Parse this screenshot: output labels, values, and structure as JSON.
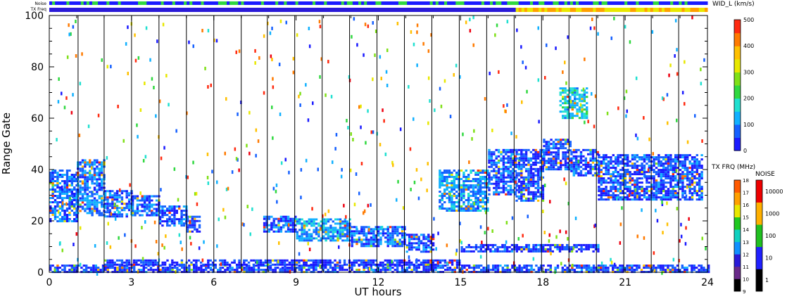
{
  "chart_data": {
    "type": "heatmap",
    "xlabel": "UT hours",
    "ylabel": "Range Gate",
    "xlim": [
      0,
      24
    ],
    "ylim": [
      0,
      100
    ],
    "x_ticks": [
      "0",
      "3",
      "6",
      "9",
      "12",
      "15",
      "18",
      "21",
      "24"
    ],
    "y_ticks": [
      "0",
      "20",
      "40",
      "60",
      "80",
      "100"
    ],
    "scan_boundaries_hours": [
      1.05,
      2.0,
      3.0,
      4.0,
      5.0,
      6.0,
      7.0,
      7.95,
      8.95,
      9.95,
      10.95,
      11.95,
      12.95,
      13.95,
      14.95,
      15.95,
      16.95,
      17.95,
      18.95,
      19.95,
      20.95,
      21.95,
      22.95
    ],
    "status_bars": {
      "noise_label": "Noise",
      "txfreq_label": "TX Freq",
      "txfreq_change_hour": 17.0
    },
    "width_scale": {
      "title": "WID_L (km/s)",
      "ticks": [
        "0",
        "100",
        "200",
        "300",
        "400",
        "500"
      ],
      "range": [
        0,
        500
      ]
    },
    "txfreq_scale": {
      "title": "TX FRQ (MHz)",
      "ticks": [
        "9",
        "10",
        "11",
        "12",
        "13",
        "14",
        "15",
        "16",
        "17",
        "18"
      ]
    },
    "noise_scale": {
      "title": "NOISE",
      "ticks": [
        "1",
        "10",
        "100",
        "1000",
        "10000"
      ]
    },
    "echo_regions": [
      {
        "t0": 0.0,
        "t1": 1.0,
        "g0": 20,
        "g1": 40,
        "width": 80
      },
      {
        "t0": 1.0,
        "t1": 2.0,
        "g0": 22,
        "g1": 44,
        "width": 90
      },
      {
        "t0": 2.0,
        "t1": 3.0,
        "g0": 22,
        "g1": 32,
        "width": 80
      },
      {
        "t0": 3.0,
        "t1": 4.0,
        "g0": 22,
        "g1": 30,
        "width": 60
      },
      {
        "t0": 4.0,
        "t1": 5.0,
        "g0": 18,
        "g1": 26,
        "width": 60
      },
      {
        "t0": 5.0,
        "t1": 5.5,
        "g0": 16,
        "g1": 22,
        "width": 60
      },
      {
        "t0": 7.8,
        "t1": 9.0,
        "g0": 16,
        "g1": 22,
        "width": 70
      },
      {
        "t0": 9.0,
        "t1": 11.0,
        "g0": 12,
        "g1": 21,
        "width": 110
      },
      {
        "t0": 11.0,
        "t1": 13.0,
        "g0": 10,
        "g1": 18,
        "width": 80
      },
      {
        "t0": 13.0,
        "t1": 14.0,
        "g0": 8,
        "g1": 15,
        "width": 60
      },
      {
        "t0": 14.2,
        "t1": 16.0,
        "g0": 24,
        "g1": 40,
        "width": 110
      },
      {
        "t0": 16.0,
        "t1": 17.0,
        "g0": 30,
        "g1": 48,
        "width": 70
      },
      {
        "t0": 17.0,
        "t1": 18.0,
        "g0": 28,
        "g1": 48,
        "width": 60
      },
      {
        "t0": 18.0,
        "t1": 19.0,
        "g0": 40,
        "g1": 52,
        "width": 60
      },
      {
        "t0": 18.6,
        "t1": 19.6,
        "g0": 60,
        "g1": 72,
        "width": 150
      },
      {
        "t0": 19.0,
        "t1": 20.0,
        "g0": 38,
        "g1": 48,
        "width": 60
      },
      {
        "t0": 20.0,
        "t1": 23.8,
        "g0": 28,
        "g1": 46,
        "width": 60
      },
      {
        "t0": 0.0,
        "t1": 24.0,
        "g0": 0,
        "g1": 3,
        "width": 50
      },
      {
        "t0": 2.0,
        "t1": 15.0,
        "g0": 3,
        "g1": 5,
        "width": 40
      },
      {
        "t0": 15.0,
        "t1": 20.0,
        "g0": 8,
        "g1": 11,
        "width": 50
      }
    ]
  },
  "colors": {
    "axes": "#000000",
    "background": "#ffffff",
    "width_palette": [
      "#1a1aff",
      "#1560ff",
      "#10b0ff",
      "#20e0d0",
      "#30d840",
      "#7fe018",
      "#e8e800",
      "#ffc000",
      "#ff7a00",
      "#ff2a10",
      "#ee0010"
    ],
    "txfreq_palette": [
      "#000000",
      "#6a2a8a",
      "#2a1ad8",
      "#1090ff",
      "#10d0c0",
      "#20c820",
      "#e8e800",
      "#ffa000",
      "#ff5a00",
      "#ee0000"
    ],
    "noise_palette": [
      "#000000",
      "#2020ff",
      "#20c020",
      "#ffb000",
      "#ee0000"
    ],
    "noise_bar": [
      "#1a1aff",
      "#30d840"
    ],
    "txfreq_bar": [
      "#2a1ad8",
      "#e8e800",
      "#ffa000"
    ]
  }
}
